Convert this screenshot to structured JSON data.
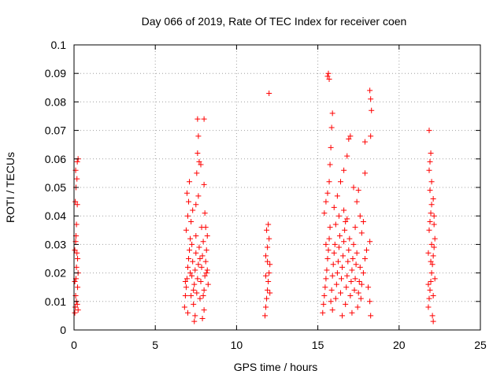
{
  "chart_data": {
    "type": "scatter",
    "title": "Day 066 of 2019, Rate Of TEC Index for receiver coen",
    "xlabel": "GPS time / hours",
    "ylabel": "ROTI / TECUs",
    "xlim": [
      0,
      25
    ],
    "ylim": [
      0,
      0.1
    ],
    "xticks": [
      0,
      5,
      10,
      15,
      20,
      25
    ],
    "xtick_labels": [
      "0",
      "5",
      "10",
      "15",
      "20",
      "25"
    ],
    "yticks": [
      0,
      0.01,
      0.02,
      0.03,
      0.04,
      0.05,
      0.06,
      0.07,
      0.08,
      0.09,
      0.1
    ],
    "ytick_labels": [
      "0",
      "0.01",
      "0.02",
      "0.03",
      "0.04",
      "0.05",
      "0.06",
      "0.07",
      "0.08",
      "0.09",
      "0.1"
    ],
    "grid": true,
    "marker": "plus",
    "color": "#ff0000",
    "series": [
      {
        "name": "ROTI",
        "points": [
          [
            0.05,
            0.006
          ],
          [
            0.08,
            0.008
          ],
          [
            0.1,
            0.012
          ],
          [
            0.12,
            0.018
          ],
          [
            0.15,
            0.022
          ],
          [
            0.18,
            0.027
          ],
          [
            0.2,
            0.009
          ],
          [
            0.22,
            0.015
          ],
          [
            0.25,
            0.02
          ],
          [
            0.05,
            0.028
          ],
          [
            0.1,
            0.031
          ],
          [
            0.15,
            0.037
          ],
          [
            0.2,
            0.044
          ],
          [
            0.12,
            0.05
          ],
          [
            0.18,
            0.053
          ],
          [
            0.1,
            0.056
          ],
          [
            0.2,
            0.059
          ],
          [
            0.25,
            0.06
          ],
          [
            0.08,
            0.045
          ],
          [
            0.22,
            0.025
          ],
          [
            0.15,
            0.01
          ],
          [
            0.05,
            0.017
          ],
          [
            0.25,
            0.007
          ],
          [
            0.12,
            0.033
          ],
          [
            6.8,
            0.008
          ],
          [
            6.85,
            0.012
          ],
          [
            6.9,
            0.015
          ],
          [
            6.95,
            0.018
          ],
          [
            7.0,
            0.022
          ],
          [
            7.05,
            0.025
          ],
          [
            7.1,
            0.028
          ],
          [
            7.15,
            0.032
          ],
          [
            7.2,
            0.012
          ],
          [
            7.25,
            0.019
          ],
          [
            7.3,
            0.024
          ],
          [
            7.35,
            0.009
          ],
          [
            7.4,
            0.016
          ],
          [
            7.45,
            0.021
          ],
          [
            7.5,
            0.027
          ],
          [
            7.55,
            0.013
          ],
          [
            7.6,
            0.018
          ],
          [
            7.65,
            0.023
          ],
          [
            7.7,
            0.029
          ],
          [
            7.75,
            0.011
          ],
          [
            7.8,
            0.017
          ],
          [
            7.85,
            0.022
          ],
          [
            7.9,
            0.026
          ],
          [
            7.95,
            0.031
          ],
          [
            8.0,
            0.014
          ],
          [
            8.05,
            0.019
          ],
          [
            8.1,
            0.024
          ],
          [
            8.15,
            0.028
          ],
          [
            8.2,
            0.021
          ],
          [
            8.25,
            0.016
          ],
          [
            6.9,
            0.035
          ],
          [
            7.0,
            0.04
          ],
          [
            7.05,
            0.045
          ],
          [
            6.95,
            0.048
          ],
          [
            7.1,
            0.052
          ],
          [
            7.2,
            0.038
          ],
          [
            7.3,
            0.042
          ],
          [
            7.4,
            0.003
          ],
          [
            7.45,
            0.005
          ],
          [
            7.5,
            0.044
          ],
          [
            7.55,
            0.055
          ],
          [
            7.6,
            0.062
          ],
          [
            7.65,
            0.068
          ],
          [
            7.6,
            0.074
          ],
          [
            7.7,
            0.059
          ],
          [
            7.8,
            0.058
          ],
          [
            8.0,
            0.074
          ],
          [
            8.0,
            0.051
          ],
          [
            8.1,
            0.036
          ],
          [
            8.2,
            0.033
          ],
          [
            7.9,
            0.004
          ],
          [
            8.0,
            0.007
          ],
          [
            7.0,
            0.006
          ],
          [
            6.85,
            0.017
          ],
          [
            7.15,
            0.02
          ],
          [
            7.35,
            0.014
          ],
          [
            7.75,
            0.025
          ],
          [
            7.95,
            0.012
          ],
          [
            8.15,
            0.02
          ],
          [
            7.25,
            0.03
          ],
          [
            7.5,
            0.033
          ],
          [
            7.85,
            0.036
          ],
          [
            8.05,
            0.041
          ],
          [
            7.65,
            0.047
          ],
          [
            11.75,
            0.005
          ],
          [
            11.8,
            0.008
          ],
          [
            11.85,
            0.011
          ],
          [
            11.9,
            0.014
          ],
          [
            11.95,
            0.017
          ],
          [
            12.0,
            0.02
          ],
          [
            12.05,
            0.023
          ],
          [
            11.8,
            0.026
          ],
          [
            11.9,
            0.029
          ],
          [
            12.0,
            0.032
          ],
          [
            11.85,
            0.035
          ],
          [
            11.95,
            0.037
          ],
          [
            11.8,
            0.019
          ],
          [
            12.05,
            0.013
          ],
          [
            11.9,
            0.024
          ],
          [
            12.0,
            0.083
          ],
          [
            15.3,
            0.006
          ],
          [
            15.35,
            0.009
          ],
          [
            15.4,
            0.012
          ],
          [
            15.45,
            0.015
          ],
          [
            15.5,
            0.018
          ],
          [
            15.55,
            0.021
          ],
          [
            15.6,
            0.025
          ],
          [
            15.65,
            0.028
          ],
          [
            15.7,
            0.032
          ],
          [
            15.75,
            0.036
          ],
          [
            15.8,
            0.01
          ],
          [
            15.85,
            0.014
          ],
          [
            15.9,
            0.019
          ],
          [
            15.95,
            0.023
          ],
          [
            16.0,
            0.027
          ],
          [
            16.05,
            0.03
          ],
          [
            16.1,
            0.011
          ],
          [
            16.15,
            0.016
          ],
          [
            16.2,
            0.02
          ],
          [
            16.25,
            0.024
          ],
          [
            16.3,
            0.029
          ],
          [
            16.35,
            0.033
          ],
          [
            16.4,
            0.013
          ],
          [
            16.45,
            0.018
          ],
          [
            16.5,
            0.022
          ],
          [
            16.55,
            0.026
          ],
          [
            16.6,
            0.031
          ],
          [
            16.65,
            0.035
          ],
          [
            16.7,
            0.009
          ],
          [
            16.75,
            0.015
          ],
          [
            16.8,
            0.019
          ],
          [
            16.85,
            0.024
          ],
          [
            16.9,
            0.028
          ],
          [
            16.95,
            0.032
          ],
          [
            17.0,
            0.012
          ],
          [
            17.05,
            0.017
          ],
          [
            17.1,
            0.021
          ],
          [
            17.15,
            0.025
          ],
          [
            17.2,
            0.03
          ],
          [
            17.25,
            0.014
          ],
          [
            17.3,
            0.018
          ],
          [
            17.35,
            0.023
          ],
          [
            17.4,
            0.027
          ],
          [
            17.45,
            0.008
          ],
          [
            17.5,
            0.013
          ],
          [
            17.55,
            0.017
          ],
          [
            17.6,
            0.022
          ],
          [
            17.65,
            0.011
          ],
          [
            17.7,
            0.016
          ],
          [
            17.8,
            0.02
          ],
          [
            17.9,
            0.025
          ],
          [
            18.0,
            0.028
          ],
          [
            18.1,
            0.015
          ],
          [
            18.2,
            0.01
          ],
          [
            18.25,
            0.005
          ],
          [
            18.2,
            0.031
          ],
          [
            15.4,
            0.041
          ],
          [
            15.5,
            0.045
          ],
          [
            15.6,
            0.048
          ],
          [
            15.7,
            0.052
          ],
          [
            15.75,
            0.058
          ],
          [
            15.8,
            0.064
          ],
          [
            15.85,
            0.071
          ],
          [
            15.9,
            0.076
          ],
          [
            15.6,
            0.089
          ],
          [
            15.65,
            0.09
          ],
          [
            15.7,
            0.088
          ],
          [
            16.0,
            0.043
          ],
          [
            16.2,
            0.047
          ],
          [
            16.4,
            0.052
          ],
          [
            16.6,
            0.056
          ],
          [
            16.8,
            0.061
          ],
          [
            16.9,
            0.067
          ],
          [
            17.0,
            0.068
          ],
          [
            17.2,
            0.05
          ],
          [
            17.4,
            0.045
          ],
          [
            17.5,
            0.049
          ],
          [
            17.6,
            0.04
          ],
          [
            17.8,
            0.038
          ],
          [
            17.9,
            0.055
          ],
          [
            18.2,
            0.084
          ],
          [
            18.25,
            0.081
          ],
          [
            18.3,
            0.077
          ],
          [
            18.25,
            0.068
          ],
          [
            17.9,
            0.066
          ],
          [
            16.6,
            0.042
          ],
          [
            16.8,
            0.039
          ],
          [
            16.1,
            0.037
          ],
          [
            15.5,
            0.03
          ],
          [
            16.5,
            0.005
          ],
          [
            17.1,
            0.006
          ],
          [
            15.9,
            0.007
          ],
          [
            16.3,
            0.04
          ],
          [
            17.7,
            0.034
          ],
          [
            16.7,
            0.038
          ],
          [
            17.3,
            0.036
          ],
          [
            21.8,
            0.008
          ],
          [
            21.85,
            0.011
          ],
          [
            21.9,
            0.014
          ],
          [
            21.95,
            0.017
          ],
          [
            22.0,
            0.02
          ],
          [
            22.05,
            0.023
          ],
          [
            22.1,
            0.026
          ],
          [
            22.15,
            0.029
          ],
          [
            22.2,
            0.032
          ],
          [
            21.85,
            0.035
          ],
          [
            21.9,
            0.038
          ],
          [
            21.95,
            0.041
          ],
          [
            22.0,
            0.044
          ],
          [
            22.1,
            0.046
          ],
          [
            22.15,
            0.04
          ],
          [
            21.9,
            0.049
          ],
          [
            22.0,
            0.052
          ],
          [
            21.85,
            0.056
          ],
          [
            21.9,
            0.059
          ],
          [
            21.95,
            0.062
          ],
          [
            21.85,
            0.07
          ],
          [
            22.1,
            0.003
          ],
          [
            22.05,
            0.005
          ],
          [
            21.8,
            0.016
          ],
          [
            22.2,
            0.018
          ],
          [
            22.0,
            0.03
          ],
          [
            21.95,
            0.024
          ],
          [
            22.15,
            0.037
          ],
          [
            22.1,
            0.012
          ],
          [
            21.8,
            0.027
          ]
        ]
      }
    ]
  }
}
